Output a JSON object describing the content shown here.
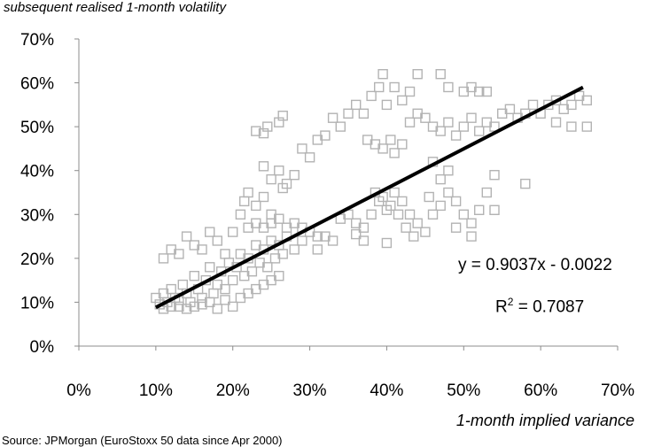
{
  "chart_data": {
    "type": "scatter",
    "ylabel": "subsequent realised 1-month volatility",
    "xlabel": "1-month implied variance",
    "xlim": [
      0,
      0.7
    ],
    "ylim": [
      0,
      0.7
    ],
    "x_ticks": [
      "0%",
      "10%",
      "20%",
      "30%",
      "40%",
      "50%",
      "60%",
      "70%"
    ],
    "y_ticks": [
      "0%",
      "10%",
      "20%",
      "30%",
      "40%",
      "50%",
      "60%",
      "70%"
    ],
    "marker": "hollow-square",
    "marker_color": "#b3b3b3",
    "trendline": {
      "slope": 0.9037,
      "intercept": -0.0022,
      "x_range": [
        0.1,
        0.655
      ],
      "color": "#000000"
    },
    "equation_text": "y  = 0.9037x  - 0.0022",
    "r2_label": "R",
    "r2_sup": "2",
    "r2_value": "= 0.7087",
    "source": "Source:  JPMorgan (EuroStoxx 50 data since Apr 2000)",
    "points": [
      [
        0.1,
        0.11
      ],
      [
        0.105,
        0.095
      ],
      [
        0.11,
        0.12
      ],
      [
        0.115,
        0.1
      ],
      [
        0.12,
        0.13
      ],
      [
        0.125,
        0.11
      ],
      [
        0.13,
        0.09
      ],
      [
        0.135,
        0.14
      ],
      [
        0.14,
        0.12
      ],
      [
        0.145,
        0.1
      ],
      [
        0.15,
        0.16
      ],
      [
        0.155,
        0.13
      ],
      [
        0.16,
        0.11
      ],
      [
        0.165,
        0.15
      ],
      [
        0.17,
        0.18
      ],
      [
        0.175,
        0.12
      ],
      [
        0.18,
        0.14
      ],
      [
        0.185,
        0.17
      ],
      [
        0.19,
        0.13
      ],
      [
        0.195,
        0.19
      ],
      [
        0.2,
        0.15
      ],
      [
        0.205,
        0.18
      ],
      [
        0.21,
        0.21
      ],
      [
        0.215,
        0.16
      ],
      [
        0.22,
        0.2
      ],
      [
        0.225,
        0.17
      ],
      [
        0.23,
        0.23
      ],
      [
        0.235,
        0.19
      ],
      [
        0.24,
        0.22
      ],
      [
        0.245,
        0.18
      ],
      [
        0.25,
        0.24
      ],
      [
        0.255,
        0.2
      ],
      [
        0.26,
        0.23
      ],
      [
        0.265,
        0.21
      ],
      [
        0.27,
        0.25
      ],
      [
        0.28,
        0.22
      ],
      [
        0.29,
        0.24
      ],
      [
        0.3,
        0.26
      ],
      [
        0.31,
        0.22
      ],
      [
        0.32,
        0.25
      ],
      [
        0.11,
        0.085
      ],
      [
        0.12,
        0.09
      ],
      [
        0.13,
        0.105
      ],
      [
        0.14,
        0.085
      ],
      [
        0.15,
        0.09
      ],
      [
        0.16,
        0.095
      ],
      [
        0.17,
        0.1
      ],
      [
        0.18,
        0.085
      ],
      [
        0.19,
        0.105
      ],
      [
        0.2,
        0.09
      ],
      [
        0.21,
        0.11
      ],
      [
        0.22,
        0.12
      ],
      [
        0.23,
        0.13
      ],
      [
        0.24,
        0.14
      ],
      [
        0.25,
        0.15
      ],
      [
        0.26,
        0.16
      ],
      [
        0.11,
        0.2
      ],
      [
        0.12,
        0.22
      ],
      [
        0.13,
        0.21
      ],
      [
        0.14,
        0.25
      ],
      [
        0.15,
        0.23
      ],
      [
        0.16,
        0.22
      ],
      [
        0.17,
        0.26
      ],
      [
        0.18,
        0.24
      ],
      [
        0.19,
        0.21
      ],
      [
        0.2,
        0.26
      ],
      [
        0.21,
        0.3
      ],
      [
        0.215,
        0.33
      ],
      [
        0.22,
        0.35
      ],
      [
        0.23,
        0.32
      ],
      [
        0.24,
        0.34
      ],
      [
        0.25,
        0.3
      ],
      [
        0.22,
        0.27
      ],
      [
        0.23,
        0.28
      ],
      [
        0.24,
        0.27
      ],
      [
        0.25,
        0.28
      ],
      [
        0.26,
        0.29
      ],
      [
        0.27,
        0.27
      ],
      [
        0.28,
        0.28
      ],
      [
        0.29,
        0.27
      ],
      [
        0.24,
        0.41
      ],
      [
        0.25,
        0.38
      ],
      [
        0.26,
        0.4
      ],
      [
        0.27,
        0.37
      ],
      [
        0.28,
        0.39
      ],
      [
        0.265,
        0.36
      ],
      [
        0.23,
        0.49
      ],
      [
        0.245,
        0.5
      ],
      [
        0.26,
        0.51
      ],
      [
        0.265,
        0.525
      ],
      [
        0.24,
        0.485
      ],
      [
        0.29,
        0.45
      ],
      [
        0.3,
        0.43
      ],
      [
        0.31,
        0.47
      ],
      [
        0.32,
        0.48
      ],
      [
        0.33,
        0.52
      ],
      [
        0.34,
        0.5
      ],
      [
        0.35,
        0.53
      ],
      [
        0.36,
        0.55
      ],
      [
        0.37,
        0.53
      ],
      [
        0.38,
        0.57
      ],
      [
        0.39,
        0.59
      ],
      [
        0.4,
        0.55
      ],
      [
        0.42,
        0.56
      ],
      [
        0.41,
        0.59
      ],
      [
        0.395,
        0.62
      ],
      [
        0.43,
        0.58
      ],
      [
        0.44,
        0.62
      ],
      [
        0.47,
        0.62
      ],
      [
        0.48,
        0.59
      ],
      [
        0.5,
        0.58
      ],
      [
        0.51,
        0.59
      ],
      [
        0.52,
        0.58
      ],
      [
        0.53,
        0.58
      ],
      [
        0.34,
        0.29
      ],
      [
        0.35,
        0.3
      ],
      [
        0.36,
        0.28
      ],
      [
        0.37,
        0.27
      ],
      [
        0.38,
        0.3
      ],
      [
        0.39,
        0.33
      ],
      [
        0.4,
        0.31
      ],
      [
        0.41,
        0.35
      ],
      [
        0.42,
        0.33
      ],
      [
        0.43,
        0.3
      ],
      [
        0.44,
        0.28
      ],
      [
        0.45,
        0.26
      ],
      [
        0.46,
        0.3
      ],
      [
        0.47,
        0.32
      ],
      [
        0.48,
        0.35
      ],
      [
        0.49,
        0.33
      ],
      [
        0.5,
        0.3
      ],
      [
        0.51,
        0.28
      ],
      [
        0.52,
        0.31
      ],
      [
        0.53,
        0.35
      ],
      [
        0.54,
        0.39
      ],
      [
        0.46,
        0.42
      ],
      [
        0.47,
        0.38
      ],
      [
        0.48,
        0.4
      ],
      [
        0.385,
        0.35
      ],
      [
        0.395,
        0.34
      ],
      [
        0.405,
        0.32
      ],
      [
        0.415,
        0.3
      ],
      [
        0.425,
        0.27
      ],
      [
        0.435,
        0.25
      ],
      [
        0.455,
        0.34
      ],
      [
        0.375,
        0.47
      ],
      [
        0.385,
        0.46
      ],
      [
        0.395,
        0.45
      ],
      [
        0.405,
        0.47
      ],
      [
        0.41,
        0.44
      ],
      [
        0.42,
        0.46
      ],
      [
        0.43,
        0.51
      ],
      [
        0.44,
        0.53
      ],
      [
        0.45,
        0.52
      ],
      [
        0.46,
        0.5
      ],
      [
        0.47,
        0.49
      ],
      [
        0.48,
        0.51
      ],
      [
        0.49,
        0.48
      ],
      [
        0.5,
        0.5
      ],
      [
        0.51,
        0.52
      ],
      [
        0.52,
        0.49
      ],
      [
        0.53,
        0.51
      ],
      [
        0.54,
        0.5
      ],
      [
        0.55,
        0.53
      ],
      [
        0.56,
        0.54
      ],
      [
        0.57,
        0.52
      ],
      [
        0.58,
        0.53
      ],
      [
        0.59,
        0.55
      ],
      [
        0.6,
        0.53
      ],
      [
        0.61,
        0.55
      ],
      [
        0.62,
        0.56
      ],
      [
        0.63,
        0.54
      ],
      [
        0.64,
        0.55
      ],
      [
        0.65,
        0.57
      ],
      [
        0.66,
        0.56
      ],
      [
        0.58,
        0.37
      ],
      [
        0.54,
        0.31
      ],
      [
        0.51,
        0.25
      ],
      [
        0.49,
        0.27
      ],
      [
        0.64,
        0.5
      ],
      [
        0.66,
        0.5
      ],
      [
        0.62,
        0.51
      ],
      [
        0.4,
        0.235
      ],
      [
        0.37,
        0.24
      ],
      [
        0.36,
        0.255
      ],
      [
        0.33,
        0.24
      ],
      [
        0.31,
        0.25
      ]
    ]
  }
}
